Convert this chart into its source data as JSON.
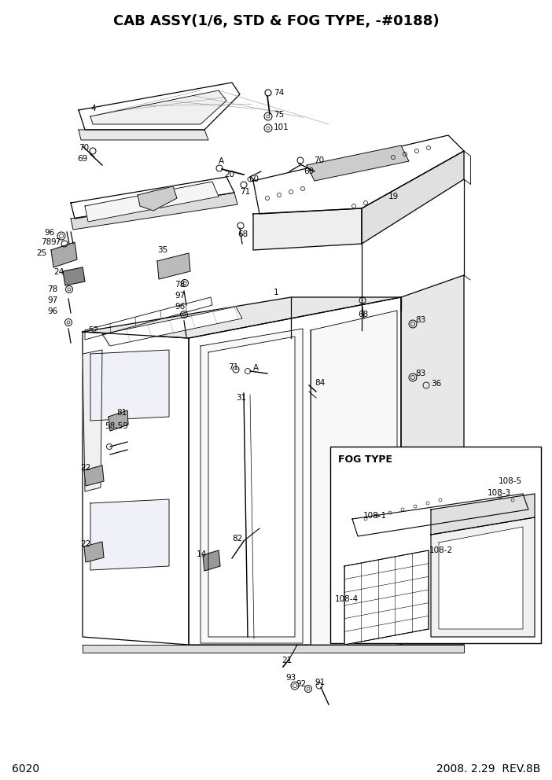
{
  "title": "CAB ASSY(1/6, STD & FOG TYPE, -#0188)",
  "page_num": "6020",
  "revision": "2008. 2.29  REV.8B",
  "bg_color": "#ffffff",
  "title_fontsize": 13,
  "footer_fontsize": 10,
  "label_fontsize": 7.5
}
